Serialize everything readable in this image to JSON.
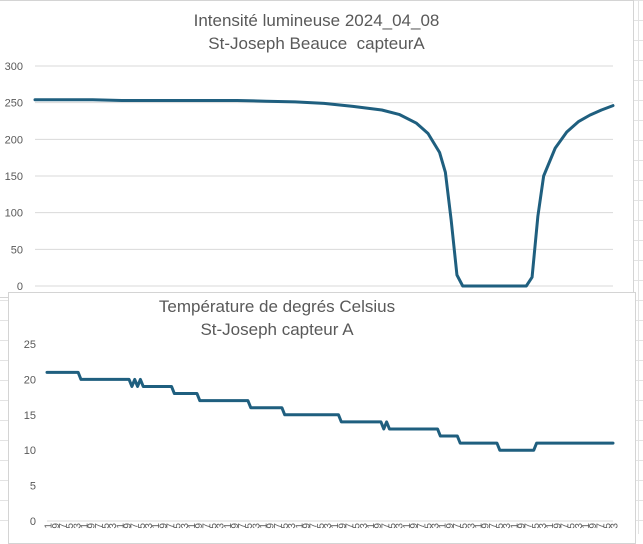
{
  "chart_data": [
    {
      "type": "line",
      "title": "Intensité lumineuse 2024_04_08",
      "subtitle": "St-Joseph Beauce  capteurA",
      "xlabel": "",
      "ylabel": "",
      "ylim": [
        0,
        300
      ],
      "yticks": [
        "0",
        "50",
        "100",
        "150",
        "200",
        "250",
        "300"
      ],
      "grid": true,
      "legend": "none",
      "color": "#1f5f7f",
      "series": [
        {
          "x": [
            0,
            5,
            10,
            15,
            20,
            25,
            30,
            35,
            40,
            45,
            50,
            55,
            60,
            63,
            66,
            68,
            70,
            71,
            72,
            73,
            74,
            75,
            76,
            77,
            78,
            79,
            80,
            81,
            82,
            83,
            84,
            85,
            86,
            87,
            88,
            90,
            92,
            94,
            96,
            98,
            100
          ],
          "values": [
            254,
            254,
            254,
            253,
            253,
            253,
            253,
            253,
            252,
            251,
            249,
            245,
            240,
            234,
            222,
            208,
            182,
            155,
            90,
            15,
            0,
            0,
            0,
            0,
            0,
            0,
            0,
            0,
            0,
            0,
            0,
            0,
            12,
            95,
            150,
            188,
            210,
            224,
            233,
            240,
            246
          ]
        }
      ]
    },
    {
      "type": "line",
      "title": "Température de degrés Celsius",
      "subtitle": "St-Joseph capteur A",
      "xlabel": "",
      "ylabel": "",
      "ylim": [
        0,
        25
      ],
      "yticks": [
        "0",
        "5",
        "10",
        "15",
        "20",
        "25"
      ],
      "xticks": [
        "1",
        "9",
        "7",
        "5",
        "3",
        "1",
        "9",
        "7",
        "5",
        "3",
        "1",
        "9",
        "7",
        "5",
        "3",
        "1",
        "9",
        "7",
        "5",
        "3",
        "1",
        "9",
        "7",
        "5",
        "3",
        "1",
        "9",
        "7",
        "5",
        "3",
        "1",
        "9",
        "7",
        "5",
        "3",
        "1",
        "9",
        "7",
        "5",
        "3",
        "1",
        "9",
        "7",
        "5",
        "3",
        "1",
        "9",
        "7",
        "5",
        "3",
        "1",
        "9",
        "7",
        "5",
        "3",
        "1",
        "9",
        "7",
        "5",
        "3",
        "1",
        "9",
        "7",
        "5",
        "3",
        "1",
        "9",
        "7",
        "5",
        "3",
        "1",
        "9",
        "7",
        "5",
        "3",
        "1",
        "9",
        "7",
        "5",
        "3"
      ],
      "grid": false,
      "legend": "none",
      "color": "#1f5f7f",
      "series": [
        {
          "x": [
            0,
            5.5,
            6,
            14.5,
            15,
            15.5,
            16,
            16.5,
            17,
            22,
            22.5,
            26.5,
            27,
            35.5,
            36,
            41.5,
            42,
            51.5,
            52,
            59,
            59.5,
            60,
            60.5,
            69,
            69.5,
            72.5,
            73,
            79.5,
            80,
            86,
            86.5,
            87,
            100
          ],
          "values": [
            21,
            21,
            20,
            20,
            19,
            20,
            19,
            20,
            19,
            19,
            18,
            18,
            17,
            17,
            16,
            16,
            15,
            15,
            14,
            14,
            13,
            14,
            13,
            13,
            12,
            12,
            11,
            11,
            10,
            10,
            11,
            11,
            11
          ]
        }
      ]
    }
  ]
}
